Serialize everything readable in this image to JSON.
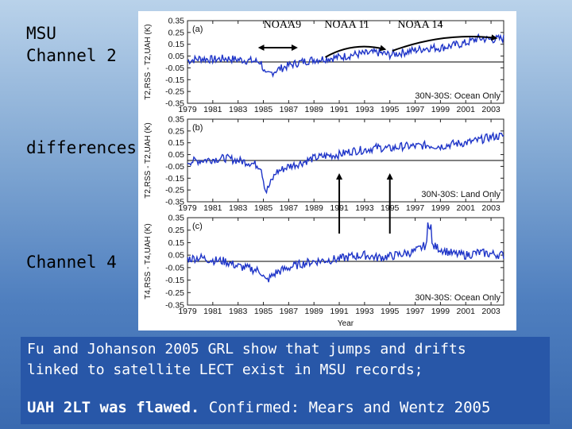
{
  "side_labels": {
    "msu_channel_2": "MSU\nChannel 2",
    "differences": "differences",
    "channel_4": "Channel 4"
  },
  "satellites": [
    "NOAA9",
    "NOAA 11",
    "NOAA 14"
  ],
  "caption": {
    "line1": "Fu and Johanson 2005 GRL show that jumps and drifts",
    "line2": "linked to satellite LECT exist in MSU records;",
    "line3_bold": "UAH 2LT was flawed.",
    "line3_rest": " Confirmed: Mears and Wentz 2005"
  },
  "chart_data": [
    {
      "type": "line",
      "panel": "(a)",
      "annotation": "30N-30S: Ocean Only",
      "ylabel": "T2,RSS - T2,UAH (K)",
      "xlim": [
        1979,
        2004
      ],
      "ylim": [
        -0.35,
        0.35
      ],
      "yticks": [
        "0.35",
        "0.25",
        "0.15",
        "0.05",
        "-0.05",
        "-0.15",
        "-0.25",
        "-0.35"
      ],
      "xticks": [
        "1979",
        "1981",
        "1983",
        "1985",
        "1987",
        "1989",
        "1991",
        "1993",
        "1995",
        "1997",
        "1999",
        "2001",
        "2003"
      ],
      "x": [
        1979,
        1980,
        1981,
        1982,
        1983,
        1984,
        1984.8,
        1985.2,
        1986,
        1987,
        1988,
        1989,
        1990,
        1991,
        1992,
        1993,
        1994,
        1995,
        1996,
        1997,
        1998,
        1999,
        2000,
        2001,
        2002,
        2003,
        2004
      ],
      "values": [
        0.01,
        0.03,
        0.02,
        0.03,
        0.02,
        0.01,
        0.0,
        -0.12,
        -0.07,
        -0.03,
        0.0,
        0.02,
        0.03,
        0.04,
        0.06,
        0.07,
        0.08,
        0.06,
        0.08,
        0.1,
        0.12,
        0.12,
        0.14,
        0.16,
        0.2,
        0.19,
        0.2
      ]
    },
    {
      "type": "line",
      "panel": "(b)",
      "annotation": "30N-30S: Land Only",
      "ylabel": "T2,RSS - T2,UAH (K)",
      "xlim": [
        1979,
        2004
      ],
      "ylim": [
        -0.35,
        0.35
      ],
      "yticks": [
        "0.35",
        "0.25",
        "0.15",
        "0.05",
        "-0.05",
        "-0.15",
        "-0.25",
        "-0.35"
      ],
      "xticks": [
        "1979",
        "1981",
        "1983",
        "1985",
        "1987",
        "1989",
        "1991",
        "1993",
        "1995",
        "1997",
        "1999",
        "2001",
        "2003"
      ],
      "x": [
        1979,
        1980,
        1981,
        1982,
        1983,
        1984,
        1984.8,
        1985.2,
        1986,
        1987,
        1988,
        1989,
        1990,
        1991,
        1992,
        1993,
        1994,
        1995,
        1996,
        1997,
        1998,
        1999,
        2000,
        2001,
        2002,
        2003,
        2004
      ],
      "values": [
        -0.01,
        0.0,
        0.01,
        0.02,
        0.0,
        -0.02,
        -0.05,
        -0.27,
        -0.1,
        -0.05,
        -0.02,
        0.02,
        0.04,
        0.05,
        0.08,
        0.09,
        0.11,
        0.1,
        0.12,
        0.12,
        0.13,
        0.12,
        0.14,
        0.15,
        0.17,
        0.2,
        0.21
      ]
    },
    {
      "type": "line",
      "panel": "(c)",
      "annotation": "30N-30S: Ocean Only",
      "ylabel": "T4,RSS - T4,UAH (K)",
      "xlabel": "Year",
      "xlim": [
        1979,
        2004
      ],
      "ylim": [
        -0.35,
        0.35
      ],
      "yticks": [
        "0.35",
        "0.25",
        "0.15",
        "0.05",
        "-0.05",
        "-0.15",
        "-0.25",
        "-0.35"
      ],
      "xticks": [
        "1979",
        "1981",
        "1983",
        "1985",
        "1987",
        "1989",
        "1991",
        "1993",
        "1995",
        "1997",
        "1999",
        "2001",
        "2003"
      ],
      "x": [
        1979,
        1980,
        1981,
        1982,
        1983,
        1984,
        1984.8,
        1985.2,
        1986,
        1987,
        1988,
        1989,
        1990,
        1991,
        1992,
        1993,
        1994,
        1995,
        1996,
        1997,
        1998,
        1999,
        2000,
        2001,
        2002,
        2003,
        2004
      ],
      "values": [
        0.02,
        0.03,
        0.01,
        0.0,
        -0.04,
        -0.06,
        -0.08,
        -0.16,
        -0.09,
        -0.05,
        -0.02,
        0.0,
        0.01,
        0.02,
        0.04,
        0.05,
        0.03,
        0.04,
        0.06,
        0.08,
        0.14,
        0.1,
        0.06,
        0.05,
        0.07,
        0.06,
        0.05
      ]
    }
  ]
}
